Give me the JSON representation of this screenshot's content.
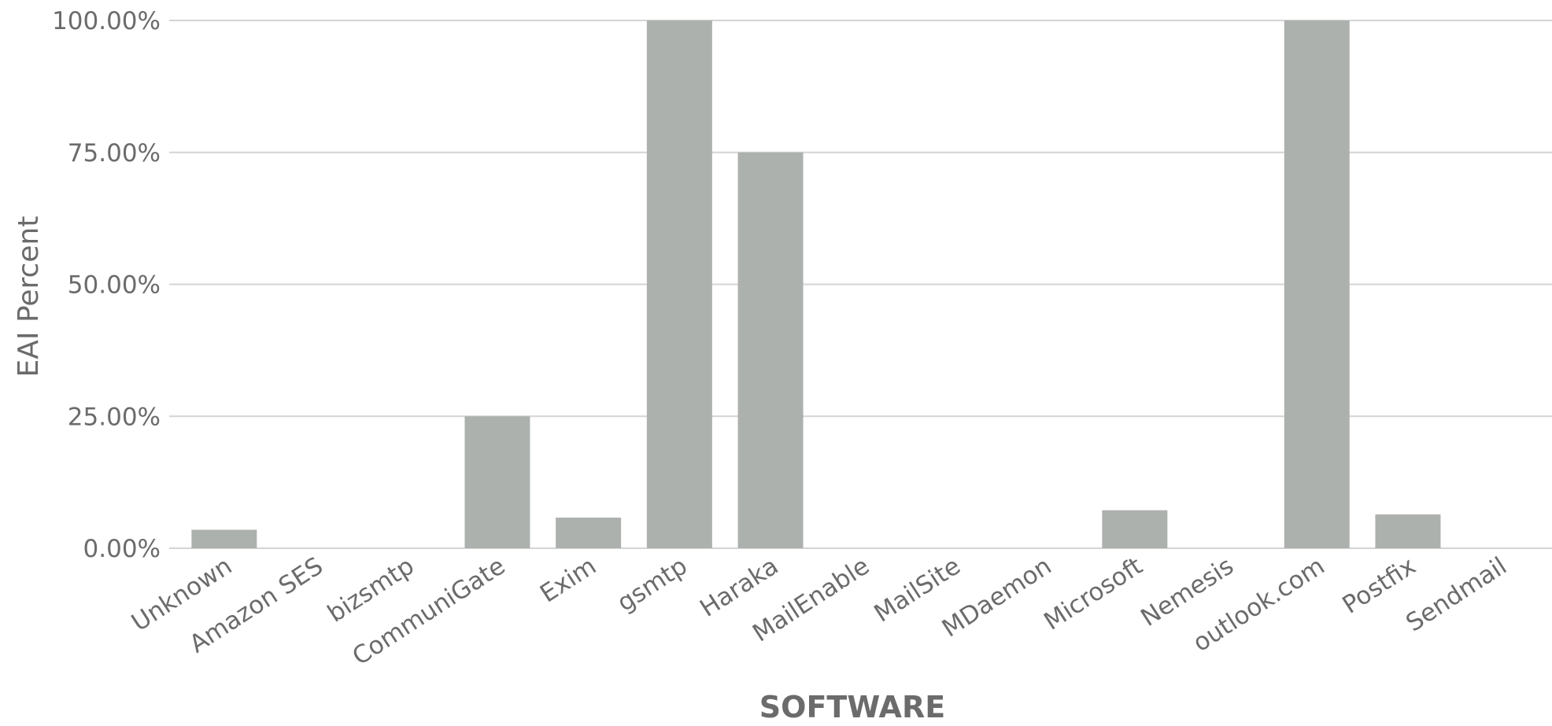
{
  "chart_data": {
    "type": "bar",
    "xlabel": "SOFTWARE",
    "ylabel": "EAI Percent",
    "ylim": [
      0,
      100
    ],
    "yticks": [
      "0.00%",
      "25.00%",
      "50.00%",
      "75.00%",
      "100.00%"
    ],
    "ytick_values": [
      0,
      25,
      50,
      75,
      100
    ],
    "grid": true,
    "bar_color": "#adb1ad",
    "categories": [
      "Unknown",
      "Amazon SES",
      "bizsmtp",
      "CommuniGate",
      "Exim",
      "gsmtp",
      "Haraka",
      "MailEnable",
      "MailSite",
      "MDaemon",
      "Microsoft",
      "Nemesis",
      "outlook.com",
      "Postfix",
      "Sendmail"
    ],
    "values": [
      3.5,
      0,
      0,
      25,
      5.8,
      100,
      75,
      0,
      0,
      0,
      7.2,
      0,
      100,
      6.4,
      0
    ]
  }
}
